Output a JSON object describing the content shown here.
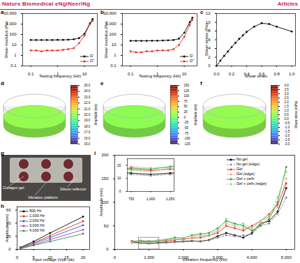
{
  "header": {
    "journal": "Nature Biomedical eNgiNeeriNg",
    "section": "Articles"
  },
  "chart_data": [
    {
      "panel": "a",
      "type": "line",
      "log": true,
      "xlabel": "Testing frequency (Hz)",
      "ylabel": "Shear modulus (Pa)",
      "xlim": [
        0.05,
        30
      ],
      "xticks": [
        0.1,
        1,
        10
      ],
      "ylim": [
        0.1,
        10000
      ],
      "yticks": [
        0.1,
        1,
        10,
        100,
        {
          "value": 1000,
          "label": "1,000"
        },
        {
          "value": 10000,
          "label": "10,000"
        }
      ],
      "legend": "bottom-right",
      "x": [
        0.1,
        0.16,
        0.25,
        0.4,
        0.63,
        1,
        1.6,
        2.5,
        4,
        6.3,
        10,
        16,
        20
      ],
      "series": [
        {
          "name": "G′",
          "color": "#000000",
          "marker": "circle",
          "values": [
            30,
            30,
            30,
            30,
            30,
            31,
            31,
            32,
            35,
            45,
            120,
            1200,
            3000
          ]
        },
        {
          "name": "G″",
          "color": "#e0301e",
          "marker": "square",
          "values": [
            3,
            3,
            2.5,
            3,
            3,
            3,
            3.5,
            4,
            5,
            15,
            80,
            1000,
            2000
          ]
        }
      ]
    },
    {
      "panel": "b",
      "type": "line",
      "log": true,
      "xlabel": "Testing frequency (Hz)",
      "ylabel": "Shear modulus (Pa)",
      "xlim": [
        0.05,
        30
      ],
      "xticks": [
        0.1,
        1,
        10
      ],
      "ylim": [
        0.1,
        10000
      ],
      "yticks": [
        0.1,
        1,
        10,
        100,
        {
          "value": 1000,
          "label": "1,000"
        },
        {
          "value": 10000,
          "label": "10,000"
        }
      ],
      "legend": "bottom-right",
      "x": [
        0.1,
        0.16,
        0.25,
        0.4,
        0.63,
        1,
        1.6,
        2.5,
        4,
        6.3,
        10,
        16,
        20
      ],
      "series": [
        {
          "name": "G′",
          "color": "#000000",
          "marker": "circle",
          "values": [
            25,
            25,
            25,
            25,
            26,
            26,
            27,
            28,
            30,
            40,
            150,
            1500,
            4000
          ]
        },
        {
          "name": "G″",
          "color": "#e0301e",
          "marker": "square",
          "values": [
            2.5,
            2,
            2,
            2.5,
            2.5,
            3,
            3,
            3,
            4,
            10,
            60,
            800,
            2500
          ]
        }
      ]
    },
    {
      "panel": "c",
      "type": "line",
      "xlabel": "Shear strain",
      "ylabel": "Shear stress (Pa)",
      "xlim": [
        0,
        1.05
      ],
      "xticks": [
        {
          "value": 0,
          "label": "0.0"
        },
        0.2,
        0.4,
        0.6,
        0.8,
        {
          "value": 1,
          "label": "1.0"
        }
      ],
      "ylim": [
        0,
        12
      ],
      "yticks": [
        0,
        2,
        4,
        6,
        8,
        10,
        12
      ],
      "marker": "circle",
      "x": [
        0,
        0.05,
        0.1,
        0.15,
        0.2,
        0.25,
        0.3,
        0.35,
        0.4,
        0.5,
        0.6,
        0.7,
        0.8,
        1
      ],
      "series": [
        {
          "color": "#000000",
          "values": [
            0,
            1.2,
            2.3,
            3.3,
            4.3,
            5.3,
            6.2,
            7,
            7.8,
            9,
            9.8,
            9.6,
            9,
            7.9
          ]
        }
      ]
    },
    {
      "panel": "d",
      "type": "surface",
      "surface": 20,
      "colorbar": {
        "label": "Amplitude (nm)",
        "range": [
          15,
          25
        ],
        "ticks": [
          {
            "value": 15,
            "label": "15.0"
          },
          {
            "value": 16,
            "label": "16.0"
          },
          {
            "value": 17,
            "label": "17.0"
          },
          {
            "value": 18,
            "label": "18.0"
          },
          {
            "value": 19,
            "label": "19.0"
          },
          {
            "value": 20,
            "label": "20.0"
          },
          {
            "value": 21,
            "label": "21.0"
          },
          {
            "value": 22,
            "label": "22.0"
          },
          {
            "value": 23,
            "label": "23.0"
          },
          {
            "value": 24,
            "label": "24.0"
          },
          {
            "value": 25,
            "label": "25.0"
          }
        ]
      }
    },
    {
      "panel": "e",
      "type": "surface",
      "surface": 10,
      "colorbar": {
        "label": "Amplitude (nm)",
        "range": [
          -125,
          150
        ],
        "ticks": [
          -125,
          -100,
          -75,
          -50,
          -25,
          0,
          25,
          50,
          75,
          100,
          125,
          150
        ]
      }
    },
    {
      "panel": "f",
      "type": "surface",
      "surface": 0.5,
      "colorbar": {
        "label": "Shear stress (mPa)",
        "range": [
          -3,
          4
        ],
        "ticks": [
          {
            "value": -3,
            "label": "-3.0"
          },
          -2.5,
          {
            "value": -2,
            "label": "-2.0"
          },
          -1.5,
          {
            "value": -1,
            "label": "-1.0"
          },
          -0.5,
          {
            "value": 0,
            "label": "0.0"
          },
          0.5,
          {
            "value": 1,
            "label": "1.0"
          },
          1.5,
          {
            "value": 2,
            "label": "2.0"
          },
          2.5,
          {
            "value": 3,
            "label": "3.0"
          },
          3.5,
          {
            "value": 4,
            "label": "4.0"
          }
        ]
      }
    },
    {
      "panel": "g",
      "type": "image",
      "annotations": [
        "Collagen gel",
        "Vibration platform",
        "Silicon reflector"
      ]
    },
    {
      "panel": "h",
      "type": "line",
      "xlabel": "Input voltage (Vpk–pk)",
      "ylabel": "Amplitude (nm)",
      "xlim": [
        0,
        22
      ],
      "xticks": [
        0,
        5,
        10,
        15,
        20
      ],
      "ylim": [
        0,
        65
      ],
      "yticks": [
        0,
        20,
        40,
        60
      ],
      "legend": "top-left",
      "marker": "circle",
      "x": [
        1,
        5,
        10,
        20
      ],
      "series": [
        {
          "name": "500 Hz",
          "color": "#000000",
          "values": [
            3,
            12,
            25,
            50
          ]
        },
        {
          "name": "1,000 Hz",
          "color": "#e0301e",
          "values": [
            2.5,
            10,
            21,
            43
          ]
        },
        {
          "name": "2,000 Hz",
          "color": "#1f5fbf",
          "values": [
            2,
            9,
            18,
            37
          ]
        },
        {
          "name": "3,000 Hz",
          "color": "#b03cb0",
          "values": [
            1.5,
            7,
            15,
            30
          ]
        },
        {
          "name": "4,000 Hz",
          "color": "#2a9d3a",
          "values": [
            1,
            6,
            12,
            24
          ]
        }
      ]
    },
    {
      "panel": "i",
      "type": "line",
      "xlabel": "Vibration frequency (Hz)",
      "ylabel": "Amplitude (nm)",
      "xlim": [
        0,
        5250
      ],
      "xticks": [
        0,
        {
          "value": 1000,
          "label": "1,000"
        },
        {
          "value": 2000,
          "label": "2,000"
        },
        {
          "value": 3000,
          "label": "3,000"
        },
        {
          "value": 4000,
          "label": "4,000"
        },
        {
          "value": 5000,
          "label": "5,000"
        }
      ],
      "ylim": [
        0,
        200
      ],
      "yticks": [
        0,
        50,
        100,
        150,
        200
      ],
      "legend": "top-right",
      "marker": "circle",
      "x": [
        500,
        750,
        1000,
        1250,
        1500,
        1750,
        2000,
        2250,
        2500,
        2750,
        3000,
        3250,
        3500,
        3750,
        4000,
        4250,
        4500,
        4750,
        5000
      ],
      "series": [
        {
          "name": "No gel",
          "color": "#000000",
          "values": [
            15,
            14,
            13,
            14,
            15,
            16,
            17,
            18,
            17,
            20,
            28,
            35,
            30,
            25,
            35,
            55,
            60,
            80,
            130
          ]
        },
        {
          "name": "No gel (edge)",
          "color": "#8a8a8a",
          "line_style": "dashed",
          "values": [
            14,
            13,
            12,
            13,
            14,
            15,
            16,
            17,
            18,
            19,
            25,
            30,
            28,
            30,
            32,
            50,
            55,
            75,
            110
          ]
        },
        {
          "name": "Gel",
          "color": "#e0301e",
          "values": [
            18,
            17,
            16,
            17,
            18,
            20,
            22,
            24,
            25,
            30,
            35,
            50,
            45,
            40,
            50,
            60,
            75,
            95,
            140
          ]
        },
        {
          "name": "Gel (edge)",
          "color": "#f39a8a",
          "line_style": "dashed",
          "values": [
            17,
            19,
            18,
            18,
            20,
            22,
            20,
            25,
            30,
            28,
            40,
            55,
            50,
            45,
            45,
            55,
            70,
            90,
            150
          ]
        },
        {
          "name": "Gel + cells",
          "color": "#2a9d3a",
          "values": [
            16,
            18,
            17,
            19,
            21,
            25,
            24,
            30,
            33,
            35,
            45,
            60,
            55,
            50,
            40,
            50,
            65,
            100,
            175
          ]
        },
        {
          "name": "Gel + cells (edge)",
          "color": "#8fd18f",
          "line_style": "dashed",
          "values": [
            15,
            16,
            15,
            18,
            20,
            22,
            25,
            28,
            30,
            32,
            40,
            65,
            50,
            55,
            45,
            60,
            70,
            110,
            165
          ]
        }
      ],
      "inset": {
        "xlim": [
          700,
          1300
        ],
        "xticks": [
          750,
          {
            "value": 1000,
            "label": "1,000"
          },
          {
            "value": 1250,
            "label": "1,250"
          }
        ],
        "ylim": [
          0,
          25
        ],
        "yticks": [
          0,
          10,
          20
        ]
      }
    }
  ]
}
